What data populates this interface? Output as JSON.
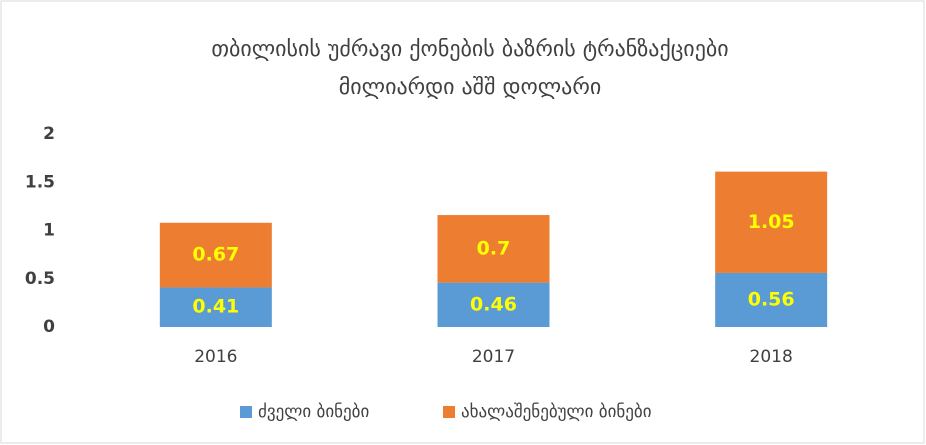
{
  "chart_data": {
    "type": "stacked_bar",
    "title": "თბილისის უძრავი ქონების ბაზრის ტრანზაქციები",
    "subtitle": "მილიარდი აშშ დოლარი",
    "categories": [
      "2016",
      "2017",
      "2018"
    ],
    "series": [
      {
        "name": "ძველი ბინები",
        "color": "#5b9bd5",
        "values": [
          0.41,
          0.46,
          0.56
        ]
      },
      {
        "name": "ახალაშენებული ბინები",
        "color": "#ed7d31",
        "values": [
          0.67,
          0.7,
          1.05
        ]
      }
    ],
    "ylim": [
      0,
      2
    ],
    "yticks": [
      0,
      0.5,
      1,
      1.5,
      2
    ],
    "grid": false
  }
}
